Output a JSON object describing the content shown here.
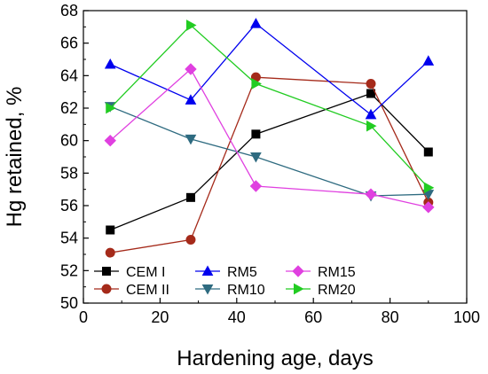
{
  "chart_data": {
    "type": "line",
    "xlabel": "Hardening age, days",
    "ylabel": "Hg retained, %",
    "xlim": [
      0,
      100
    ],
    "ylim": [
      50,
      68
    ],
    "xticks": [
      0,
      20,
      40,
      60,
      80,
      100
    ],
    "yticks": [
      50,
      52,
      54,
      56,
      58,
      60,
      62,
      64,
      66,
      68
    ],
    "grid": false,
    "legend_placement": "bottom-left",
    "series": [
      {
        "name": "CEM I",
        "color": "#000000",
        "marker": "square",
        "x": [
          7,
          28,
          45,
          75,
          90
        ],
        "y": [
          54.5,
          56.5,
          60.4,
          62.9,
          59.3
        ]
      },
      {
        "name": "CEM II",
        "color": "#a52a1a",
        "marker": "circle",
        "x": [
          7,
          28,
          45,
          75,
          90
        ],
        "y": [
          53.1,
          53.9,
          63.9,
          63.5,
          56.2
        ]
      },
      {
        "name": "RM5",
        "color": "#0000ee",
        "marker": "triangle-up",
        "x": [
          7,
          28,
          45,
          75,
          90
        ],
        "y": [
          64.7,
          62.5,
          67.2,
          61.6,
          64.9
        ]
      },
      {
        "name": "RM10",
        "color": "#2e6b80",
        "marker": "triangle-down",
        "x": [
          7,
          28,
          45,
          75,
          90
        ],
        "y": [
          62.1,
          60.1,
          59.0,
          56.6,
          56.7
        ]
      },
      {
        "name": "RM15",
        "color": "#e040e0",
        "marker": "diamond",
        "x": [
          7,
          28,
          45,
          75,
          90
        ],
        "y": [
          60.0,
          64.4,
          57.2,
          56.7,
          55.9
        ]
      },
      {
        "name": "RM20",
        "color": "#22cc22",
        "marker": "triangle-right",
        "x": [
          7,
          28,
          45,
          75,
          90
        ],
        "y": [
          62.0,
          67.1,
          63.5,
          60.9,
          57.1
        ]
      }
    ]
  }
}
